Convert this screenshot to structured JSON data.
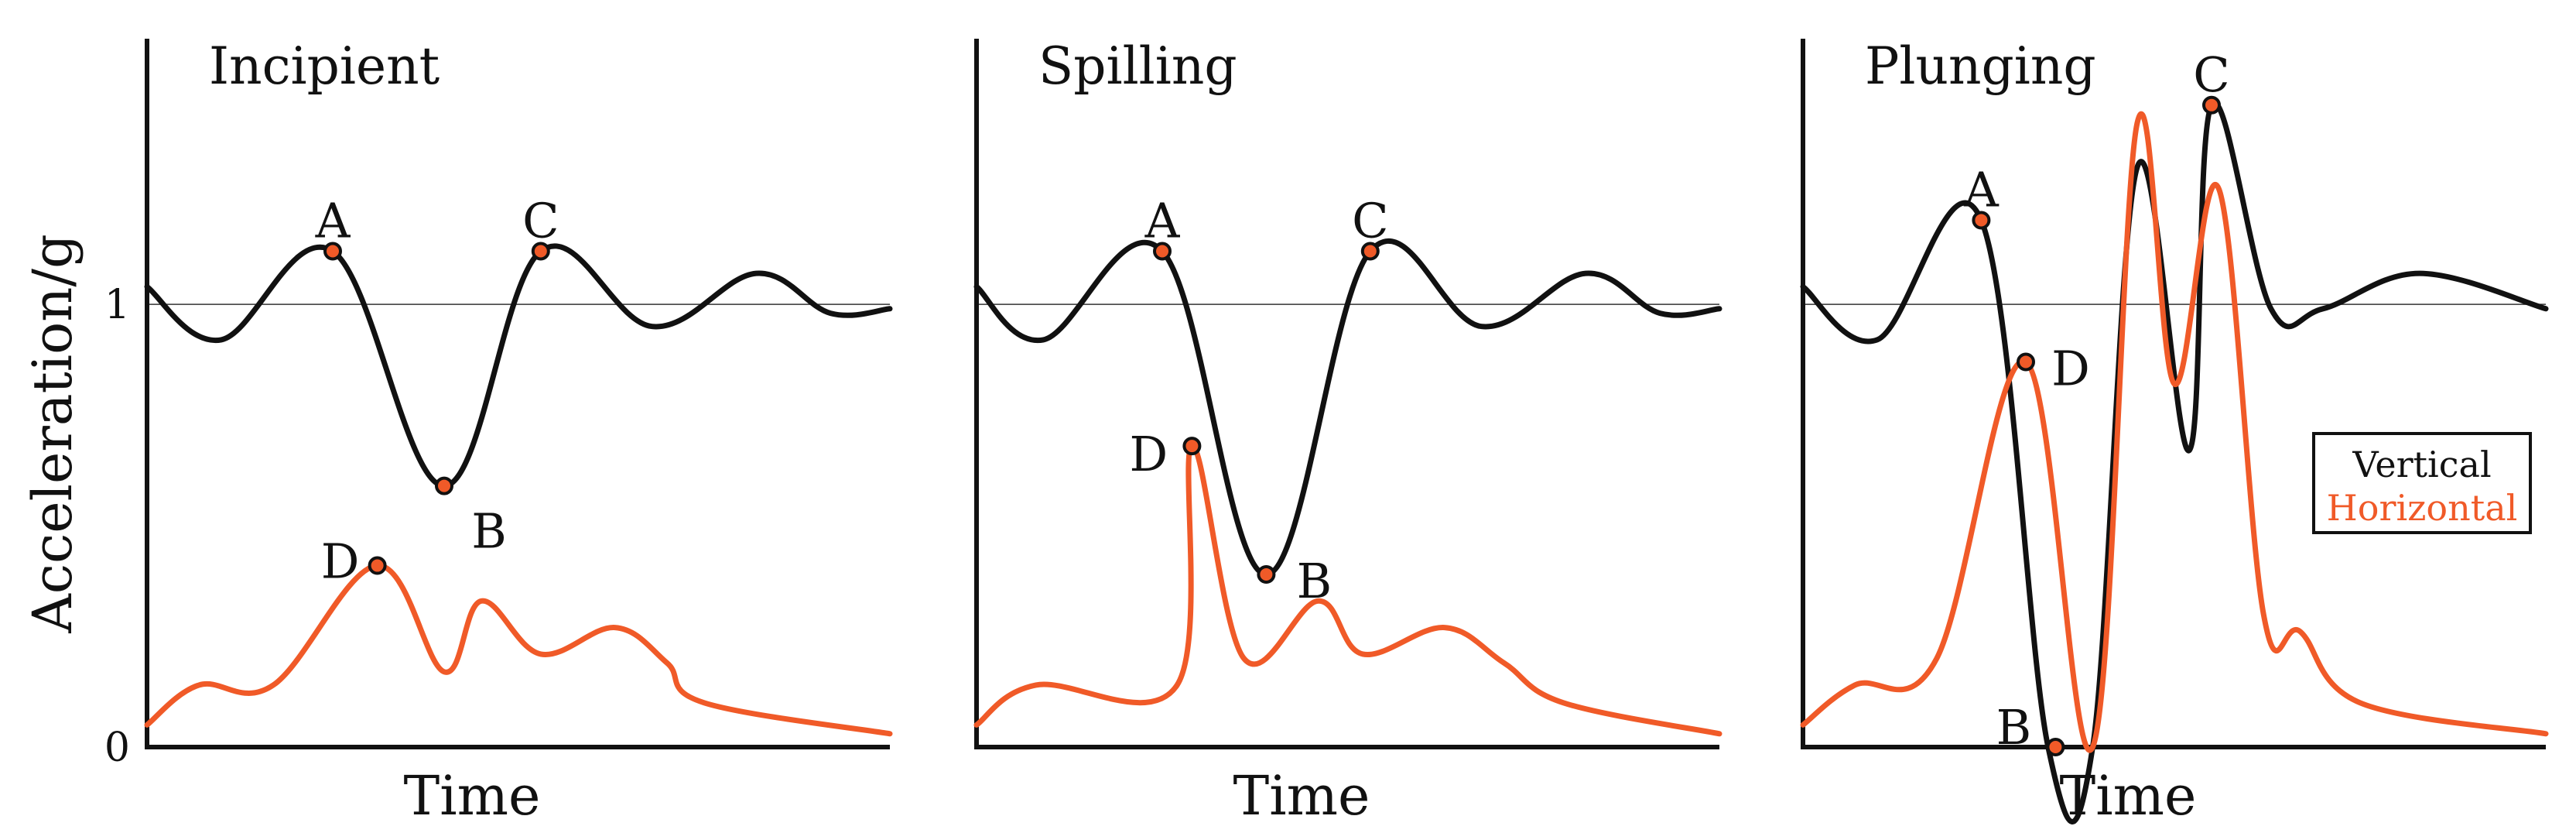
{
  "ylabel": "Acceleration/g",
  "yticks": [
    "0",
    "1"
  ],
  "colors": {
    "vertical": "#111111",
    "horizontal": "#f05a28",
    "marker_fill": "#f05a28"
  },
  "legend": {
    "placement": "right",
    "items": [
      "Vertical",
      "Horizontal"
    ]
  },
  "chart_data": [
    {
      "type": "line",
      "title": "Incipient",
      "xlabel": "Time",
      "ylabel": "Acceleration/g",
      "ylim": [
        0,
        1.6
      ],
      "grid": false,
      "reference_line": 1,
      "series": [
        {
          "name": "Vertical",
          "x": [
            0,
            0.1,
            0.25,
            0.4,
            0.53,
            0.68,
            0.82,
            0.92,
            1.0
          ],
          "y": [
            1.04,
            0.92,
            1.12,
            0.59,
            1.12,
            0.95,
            1.07,
            0.98,
            0.99
          ]
        },
        {
          "name": "Horizontal",
          "x": [
            0,
            0.07,
            0.17,
            0.31,
            0.4,
            0.45,
            0.53,
            0.63,
            0.7,
            0.75,
            1.0
          ],
          "y": [
            0.05,
            0.14,
            0.14,
            0.41,
            0.17,
            0.33,
            0.21,
            0.27,
            0.19,
            0.1,
            0.03
          ]
        }
      ],
      "annotations": [
        {
          "text": "A",
          "x": 0.25,
          "y": 1.12
        },
        {
          "text": "B",
          "x": 0.4,
          "y": 0.59
        },
        {
          "text": "C",
          "x": 0.53,
          "y": 1.12
        },
        {
          "text": "D",
          "x": 0.31,
          "y": 0.41
        }
      ]
    },
    {
      "type": "line",
      "title": "Spilling",
      "xlabel": "Time",
      "ylabel": "",
      "ylim": [
        0,
        1.6
      ],
      "grid": false,
      "reference_line": 1,
      "series": [
        {
          "name": "Vertical",
          "x": [
            0,
            0.09,
            0.25,
            0.39,
            0.53,
            0.68,
            0.82,
            0.92,
            1.0
          ],
          "y": [
            1.04,
            0.92,
            1.12,
            0.39,
            1.12,
            0.95,
            1.07,
            0.98,
            0.99
          ]
        },
        {
          "name": "Horizontal",
          "x": [
            0,
            0.08,
            0.27,
            0.29,
            0.36,
            0.46,
            0.52,
            0.63,
            0.71,
            0.79,
            1.0
          ],
          "y": [
            0.05,
            0.14,
            0.14,
            0.68,
            0.2,
            0.33,
            0.21,
            0.27,
            0.19,
            0.1,
            0.03
          ]
        }
      ],
      "annotations": [
        {
          "text": "A",
          "x": 0.25,
          "y": 1.12
        },
        {
          "text": "B",
          "x": 0.39,
          "y": 0.39
        },
        {
          "text": "C",
          "x": 0.53,
          "y": 1.12
        },
        {
          "text": "D",
          "x": 0.29,
          "y": 0.68
        }
      ]
    },
    {
      "type": "line",
      "title": "Plunging",
      "xlabel": "Time",
      "ylabel": "",
      "ylim": [
        0,
        1.6
      ],
      "grid": false,
      "reference_line": 1,
      "series": [
        {
          "name": "Vertical",
          "x": [
            0,
            0.1,
            0.24,
            0.33,
            0.39,
            0.45,
            0.52,
            0.55,
            0.63,
            0.7,
            0.83,
            1.0
          ],
          "y": [
            1.04,
            0.92,
            1.19,
            0.0,
            0.0,
            1.31,
            0.67,
            1.45,
            0.99,
            0.99,
            1.07,
            0.99
          ]
        },
        {
          "name": "Horizontal",
          "x": [
            0,
            0.07,
            0.18,
            0.3,
            0.39,
            0.45,
            0.5,
            0.56,
            0.62,
            0.67,
            0.75,
            1.0
          ],
          "y": [
            0.05,
            0.14,
            0.2,
            0.87,
            0.0,
            1.41,
            0.82,
            1.26,
            0.3,
            0.26,
            0.1,
            0.03
          ]
        }
      ],
      "annotations": [
        {
          "text": "A",
          "x": 0.24,
          "y": 1.19
        },
        {
          "text": "B",
          "x": 0.34,
          "y": 0.0
        },
        {
          "text": "C",
          "x": 0.55,
          "y": 1.45
        },
        {
          "text": "D",
          "x": 0.3,
          "y": 0.87
        }
      ]
    }
  ]
}
